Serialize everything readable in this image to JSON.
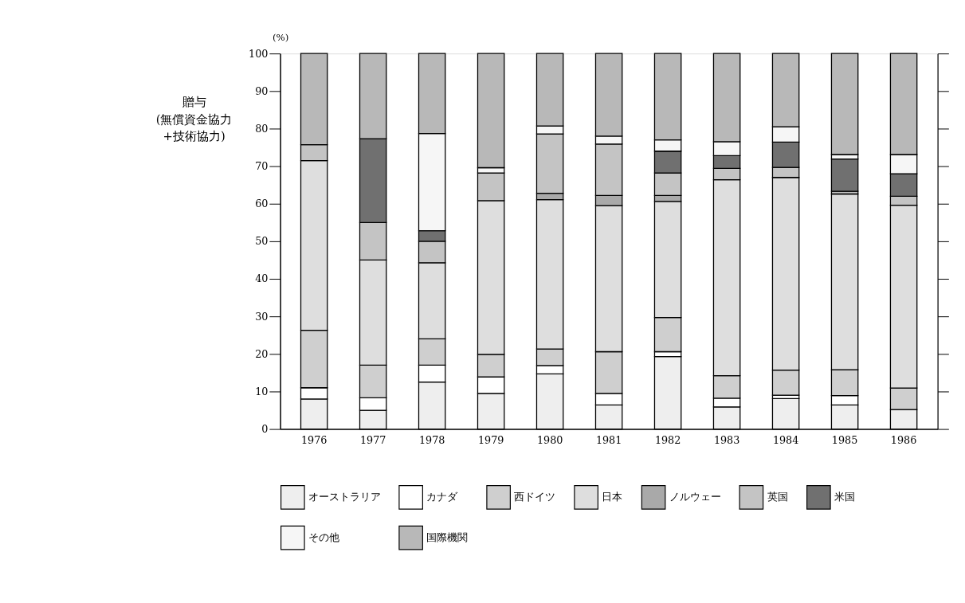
{
  "chart_data": {
    "type": "bar",
    "stacked": true,
    "ylabel": "(%)",
    "annotations": [
      "贈与 (無償資金協力 +技術協力)"
    ],
    "categories": [
      "1976",
      "1977",
      "1978",
      "1979",
      "1980",
      "1981",
      "1982",
      "1983",
      "1984",
      "1985",
      "1986"
    ],
    "ylim": [
      0,
      100
    ],
    "yticks": [
      0,
      10,
      20,
      30,
      40,
      50,
      60,
      70,
      80,
      90,
      100
    ],
    "grid": false,
    "legend": "bottom",
    "series": [
      {
        "name": "オーストラリア",
        "color": "#eeeeee",
        "values": [
          8,
          5,
          12.5,
          9.5,
          14.7,
          6.4,
          19.3,
          5.9,
          8.1,
          6.4,
          5.2
        ]
      },
      {
        "name": "カナダ",
        "color": "#ffffff",
        "values": [
          3,
          3.3,
          4.5,
          4.4,
          2.2,
          3.1,
          1.3,
          2.3,
          0.9,
          2.5,
          0
        ]
      },
      {
        "name": "西ドイツ",
        "color": "#cfcfcf",
        "values": [
          15.3,
          8.7,
          7,
          6,
          4.4,
          11.1,
          9.1,
          6,
          6.7,
          6.9,
          5.7
        ]
      },
      {
        "name": "日本",
        "color": "#dedede",
        "values": [
          45.2,
          28,
          20.3,
          40.9,
          39.8,
          38.9,
          30.9,
          52.2,
          51.3,
          46.8,
          48.7
        ]
      },
      {
        "name": "ノルウェー",
        "color": "#a9a9a9",
        "values": [
          0,
          0,
          0,
          0,
          1.7,
          2.7,
          1.6,
          0,
          0,
          0,
          0
        ]
      },
      {
        "name": "英国",
        "color": "#c4c4c4",
        "values": [
          4.2,
          10,
          5.7,
          7.4,
          15.8,
          13.7,
          6,
          3,
          2.7,
          0.7,
          2.4
        ]
      },
      {
        "name": "米国",
        "color": "#707070",
        "values": [
          0,
          22.3,
          2.8,
          0,
          0,
          0,
          5.8,
          3.4,
          6.7,
          8.6,
          6
        ]
      },
      {
        "name": "その他",
        "color": "#f6f6f6",
        "values": [
          0,
          0,
          25.9,
          1.4,
          2.1,
          2.1,
          3,
          3.7,
          4.1,
          1.2,
          5.1
        ]
      },
      {
        "name": "国際機関",
        "color": "#b8b8b8",
        "values": [
          24.3,
          22.7,
          21.3,
          30.4,
          19.3,
          22,
          23,
          23.5,
          19.5,
          26.9,
          26.9
        ]
      }
    ]
  }
}
